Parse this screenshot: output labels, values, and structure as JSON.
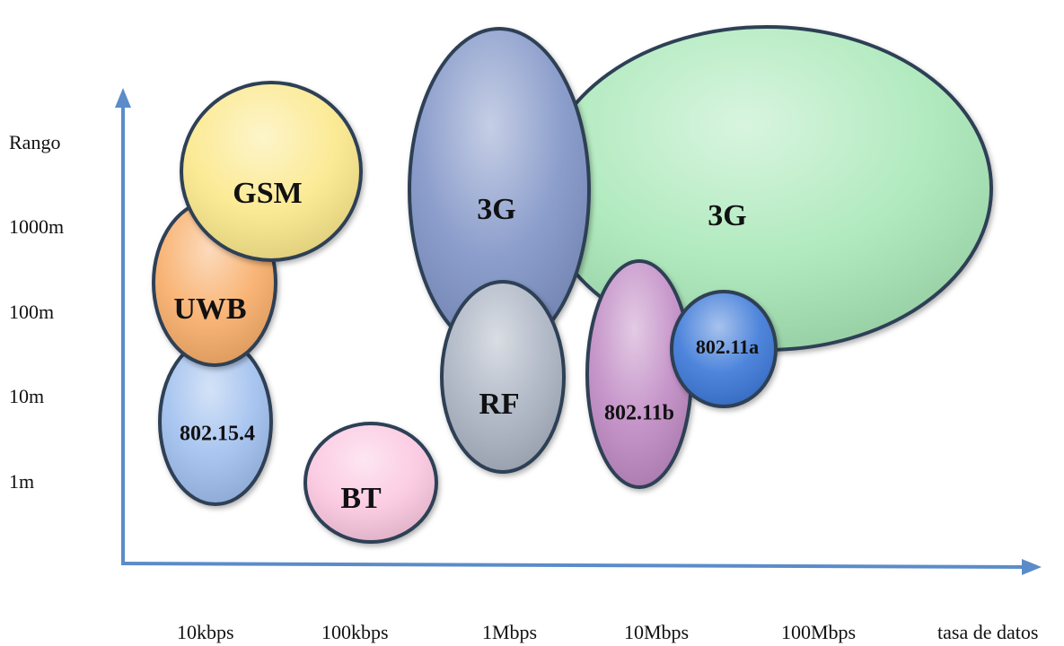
{
  "axes": {
    "y_title": "Rango",
    "x_title": "tasa de datos",
    "y_ticks": [
      "1000m",
      "100m",
      "10m",
      "1m"
    ],
    "x_ticks": [
      "10kbps",
      "100kbps",
      "1Mbps",
      "10Mbps",
      "100Mbps"
    ],
    "axis_color": "#5b8cc9"
  },
  "bubbles": [
    {
      "id": "3g-large",
      "label": "3G",
      "fill": "#a9e8b8"
    },
    {
      "id": "3g-tall",
      "label": "3G",
      "fill": "#7f93c6"
    },
    {
      "id": "gsm",
      "label": "GSM",
      "fill": "#fbe88a"
    },
    {
      "id": "uwb",
      "label": "UWB",
      "fill": "#f8ad68"
    },
    {
      "id": "802-15-4",
      "label": "802.15.4",
      "fill": "#9fbfee"
    },
    {
      "id": "bt",
      "label": "BT",
      "fill": "#fbc7e0"
    },
    {
      "id": "rf",
      "label": "RF",
      "fill": "#aab3c2"
    },
    {
      "id": "802-11b",
      "label": "802.11b",
      "fill": "#c08ac4"
    },
    {
      "id": "802-11a",
      "label": "802.11a",
      "fill": "#3a78d8"
    }
  ]
}
